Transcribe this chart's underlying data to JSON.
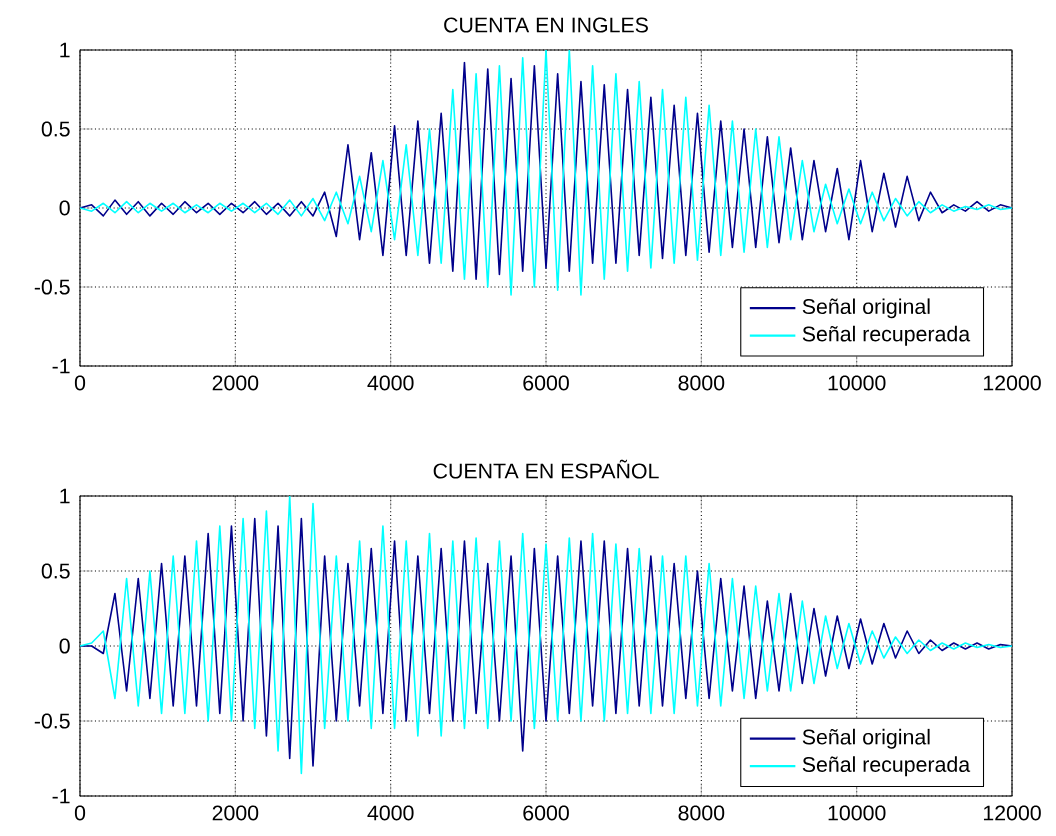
{
  "chart_data": [
    {
      "type": "line",
      "title": "CUENTA EN INGLES",
      "x": [
        0,
        150,
        300,
        450,
        600,
        750,
        900,
        1050,
        1200,
        1350,
        1500,
        1650,
        1800,
        1950,
        2100,
        2250,
        2400,
        2550,
        2700,
        2850,
        3000,
        3150,
        3300,
        3450,
        3600,
        3750,
        3900,
        4050,
        4200,
        4350,
        4500,
        4650,
        4800,
        4950,
        5100,
        5250,
        5400,
        5550,
        5700,
        5850,
        6000,
        6150,
        6300,
        6450,
        6600,
        6750,
        6900,
        7050,
        7200,
        7350,
        7500,
        7650,
        7800,
        7950,
        8100,
        8250,
        8400,
        8550,
        8700,
        8850,
        9000,
        9150,
        9300,
        9450,
        9600,
        9750,
        9900,
        10050,
        10200,
        10350,
        10500,
        10650,
        10800,
        10950,
        11100,
        11250,
        11400,
        11550,
        11700,
        11850,
        12000
      ],
      "series": [
        {
          "name": "Señal original",
          "color": "#00008b",
          "values": [
            0,
            0.02,
            -0.05,
            0.05,
            -0.04,
            0.04,
            -0.05,
            0.03,
            -0.04,
            0.04,
            -0.03,
            0.03,
            -0.04,
            0.03,
            -0.03,
            0.04,
            -0.04,
            0.03,
            -0.05,
            0.04,
            -0.05,
            0.1,
            -0.18,
            0.4,
            -0.2,
            0.35,
            -0.3,
            0.52,
            -0.3,
            0.55,
            -0.35,
            0.6,
            -0.4,
            0.92,
            -0.45,
            0.88,
            -0.42,
            0.82,
            -0.4,
            0.9,
            -0.38,
            0.85,
            -0.4,
            0.8,
            -0.35,
            0.78,
            -0.35,
            0.75,
            -0.3,
            0.7,
            -0.32,
            0.65,
            -0.3,
            0.6,
            -0.28,
            0.55,
            -0.25,
            0.5,
            -0.25,
            0.45,
            -0.22,
            0.38,
            -0.2,
            0.3,
            -0.15,
            0.25,
            -0.2,
            0.3,
            -0.15,
            0.22,
            -0.12,
            0.2,
            -0.08,
            0.1,
            -0.03,
            0.02,
            -0.02,
            0.04,
            -0.02,
            0.02,
            0
          ]
        },
        {
          "name": "Señal recuperada",
          "color": "#00ffff",
          "values": [
            0,
            -0.02,
            0.03,
            -0.03,
            0.04,
            -0.03,
            0.03,
            -0.02,
            0.03,
            -0.03,
            0.02,
            -0.03,
            0.03,
            -0.02,
            0.03,
            -0.03,
            0.03,
            -0.04,
            0.05,
            -0.05,
            0.06,
            -0.08,
            0.1,
            -0.1,
            0.2,
            -0.15,
            0.3,
            -0.2,
            0.4,
            -0.3,
            0.5,
            -0.35,
            0.75,
            -0.45,
            0.85,
            -0.5,
            0.9,
            -0.55,
            0.95,
            -0.5,
            1.0,
            -0.52,
            1.0,
            -0.55,
            0.9,
            -0.45,
            0.85,
            -0.4,
            0.8,
            -0.38,
            0.75,
            -0.35,
            0.7,
            -0.33,
            0.65,
            -0.3,
            0.55,
            -0.28,
            0.5,
            -0.25,
            0.45,
            -0.2,
            0.3,
            -0.15,
            0.15,
            -0.1,
            0.12,
            -0.1,
            0.1,
            -0.08,
            0.06,
            -0.05,
            0.04,
            -0.03,
            0.02,
            -0.02,
            0.01,
            -0.01,
            0.02,
            -0.01,
            0
          ]
        }
      ],
      "xlim": [
        0,
        12000
      ],
      "ylim": [
        -1,
        1
      ],
      "xticks": [
        0,
        2000,
        4000,
        6000,
        8000,
        10000,
        12000
      ],
      "yticks": [
        -1,
        -0.5,
        0,
        0.5,
        1
      ],
      "grid": true,
      "legend": "bottom right"
    },
    {
      "type": "line",
      "title": "CUENTA EN ESPAÑOL",
      "x": [
        0,
        150,
        300,
        450,
        600,
        750,
        900,
        1050,
        1200,
        1350,
        1500,
        1650,
        1800,
        1950,
        2100,
        2250,
        2400,
        2550,
        2700,
        2850,
        3000,
        3150,
        3300,
        3450,
        3600,
        3750,
        3900,
        4050,
        4200,
        4350,
        4500,
        4650,
        4800,
        4950,
        5100,
        5250,
        5400,
        5550,
        5700,
        5850,
        6000,
        6150,
        6300,
        6450,
        6600,
        6750,
        6900,
        7050,
        7200,
        7350,
        7500,
        7650,
        7800,
        7950,
        8100,
        8250,
        8400,
        8550,
        8700,
        8850,
        9000,
        9150,
        9300,
        9450,
        9600,
        9750,
        9900,
        10050,
        10200,
        10350,
        10500,
        10650,
        10800,
        10950,
        11100,
        11250,
        11400,
        11550,
        11700,
        11850,
        12000
      ],
      "series": [
        {
          "name": "Señal original",
          "color": "#00008b",
          "values": [
            0,
            0,
            -0.05,
            0.35,
            -0.3,
            0.45,
            -0.35,
            0.55,
            -0.4,
            0.6,
            -0.4,
            0.75,
            -0.45,
            0.8,
            -0.5,
            0.85,
            -0.6,
            0.8,
            -0.75,
            0.85,
            -0.8,
            0.6,
            -0.5,
            0.55,
            -0.4,
            0.65,
            -0.45,
            0.7,
            -0.5,
            0.6,
            -0.45,
            0.65,
            -0.5,
            0.7,
            -0.45,
            0.55,
            -0.5,
            0.6,
            -0.7,
            0.65,
            -0.5,
            0.6,
            -0.45,
            0.7,
            -0.4,
            0.7,
            -0.45,
            0.65,
            -0.4,
            0.6,
            -0.4,
            0.55,
            -0.35,
            0.5,
            -0.35,
            0.45,
            -0.3,
            0.4,
            -0.35,
            0.3,
            -0.3,
            0.35,
            -0.25,
            0.25,
            -0.2,
            0.2,
            -0.15,
            0.18,
            -0.12,
            0.15,
            -0.08,
            0.1,
            -0.05,
            0.04,
            -0.03,
            0.02,
            -0.02,
            0.02,
            -0.02,
            0.01,
            0
          ]
        },
        {
          "name": "Señal recuperada",
          "color": "#00ffff",
          "values": [
            0,
            0.02,
            0.1,
            -0.35,
            0.45,
            -0.4,
            0.5,
            -0.45,
            0.6,
            -0.45,
            0.7,
            -0.5,
            0.8,
            -0.5,
            0.85,
            -0.55,
            0.9,
            -0.7,
            1.0,
            -0.85,
            0.95,
            -0.55,
            0.6,
            -0.5,
            0.7,
            -0.55,
            0.8,
            -0.55,
            0.7,
            -0.6,
            0.75,
            -0.6,
            0.7,
            -0.55,
            0.72,
            -0.55,
            0.7,
            -0.5,
            0.75,
            -0.55,
            0.68,
            -0.5,
            0.72,
            -0.5,
            0.75,
            -0.5,
            0.68,
            -0.45,
            0.65,
            -0.45,
            0.6,
            -0.45,
            0.6,
            -0.4,
            0.55,
            -0.4,
            0.45,
            -0.35,
            0.4,
            -0.3,
            0.35,
            -0.3,
            0.3,
            -0.25,
            0.2,
            -0.15,
            0.15,
            -0.12,
            0.1,
            -0.08,
            0.06,
            -0.05,
            0.04,
            -0.03,
            0.02,
            -0.02,
            0.02,
            -0.01,
            0.01,
            -0.01,
            0
          ]
        }
      ],
      "xlim": [
        0,
        12000
      ],
      "ylim": [
        -1,
        1
      ],
      "xticks": [
        0,
        2000,
        4000,
        6000,
        8000,
        10000,
        12000
      ],
      "yticks": [
        -1,
        -0.5,
        0,
        0.5,
        1
      ],
      "grid": true,
      "legend": "bottom right"
    }
  ]
}
